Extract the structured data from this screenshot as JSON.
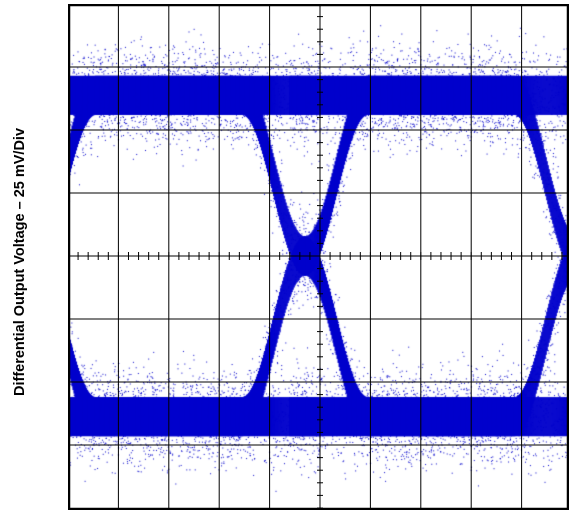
{
  "chart_data": {
    "type": "scatter",
    "title": "",
    "xlabel": "",
    "ylabel": "Differential Output Voltage – 25 mV/Div",
    "grid": true,
    "divisions": {
      "x": 10,
      "y": 8
    },
    "ylim": [
      -4,
      4
    ],
    "eye": {
      "unit_intervals": [
        {
          "start_div": -0.7,
          "end_div": 4.7
        },
        {
          "start_div": 4.7,
          "end_div": 10.1
        }
      ],
      "crossing_divs": [
        -0.7,
        4.7,
        10.1
      ],
      "high_level_div": 2.55,
      "low_level_div": -2.55,
      "band_thickness_div": 0.62,
      "trace_color": "#0000cc"
    }
  }
}
